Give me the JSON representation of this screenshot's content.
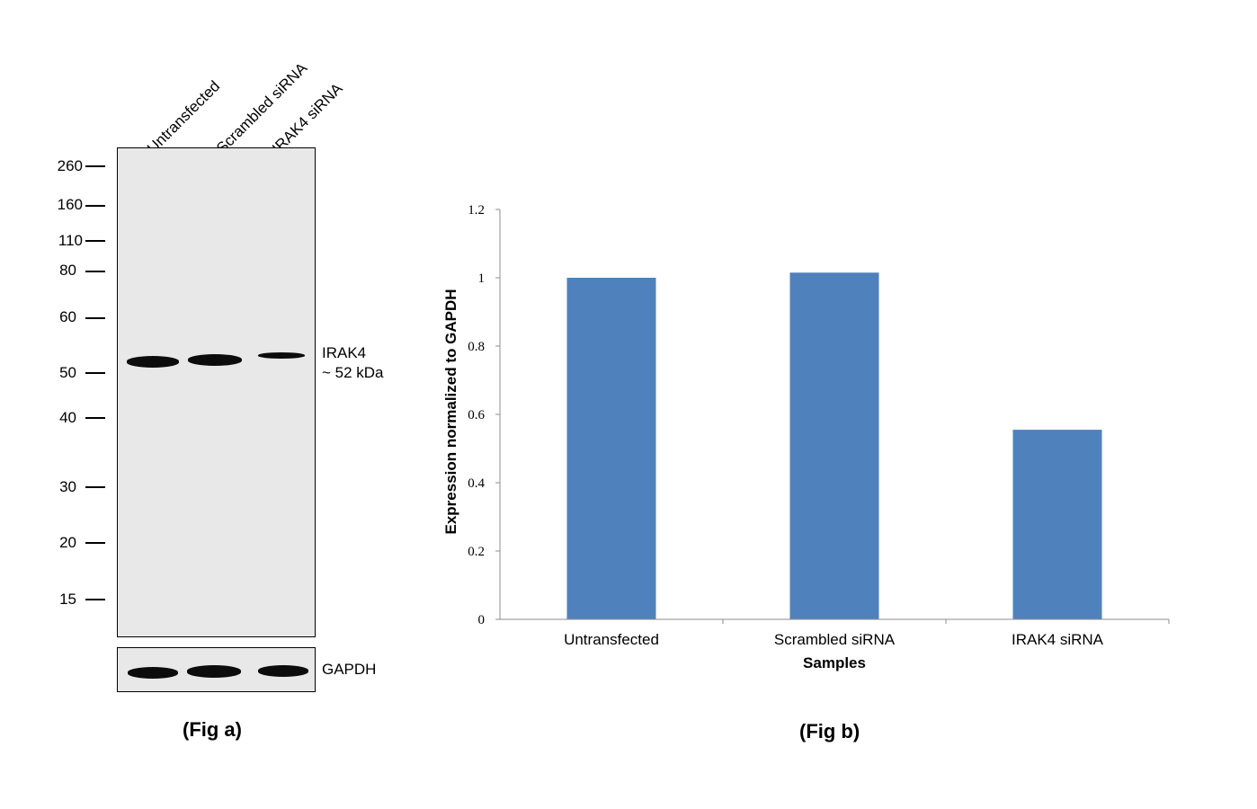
{
  "fig_a": {
    "lanes": [
      "Untransfected",
      "Scrambled siRNA",
      "IRAK4 siRNA"
    ],
    "mw_markers": [
      "260",
      "160",
      "110",
      "80",
      "60",
      "50",
      "40",
      "30",
      "20",
      "15"
    ],
    "band_label_line1": "IRAK4",
    "band_label_line2": "~ 52 kDa",
    "loading_control": "GAPDH",
    "caption": "(Fig a)",
    "band_color": "#0c0c0c",
    "blot_background": "#e8e8e8"
  },
  "fig_b": {
    "caption": "(Fig b)"
  },
  "chart_data": {
    "type": "bar",
    "categories": [
      "Untransfected",
      "Scrambled siRNA",
      "IRAK4 siRNA"
    ],
    "values": [
      1.0,
      1.015,
      0.555
    ],
    "title": "",
    "xlabel": "Samples",
    "ylabel": "Expression normalized to GAPDH",
    "ylim": [
      0,
      1.2
    ],
    "yticks": [
      "0",
      "0.2",
      "0.4",
      "0.6",
      "0.8",
      "1",
      "1.2"
    ],
    "grid": false,
    "bar_color": "#4f81bd"
  }
}
